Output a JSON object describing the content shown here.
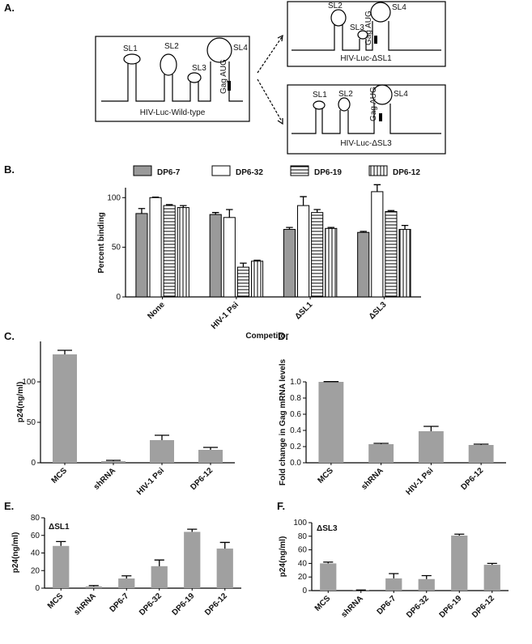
{
  "panel_a": {
    "label": "A.",
    "wild_type": {
      "stems": [
        "SL1",
        "SL2",
        "SL3",
        "SL4"
      ],
      "gag": "Gag AUG",
      "name": "HIV-Luc-Wild-type"
    },
    "delta_sl1": {
      "stems": [
        "SL2",
        "SL3",
        "SL4"
      ],
      "gag": "Gag AUG",
      "name": "HIV-Luc-ΔSL1"
    },
    "delta_sl3": {
      "stems": [
        "SL1",
        "SL2",
        "SL4"
      ],
      "gag": "Gag AUG",
      "name": "HIV-Luc-ΔSL3"
    }
  },
  "chart_data": [
    {
      "type": "bar",
      "panel": "B.",
      "y_label": "Percent binding",
      "x_label": "Competitor",
      "categories": [
        "None",
        "HIV-1 Psi",
        "ΔSL1",
        "ΔSL3"
      ],
      "edgecolor": "#000000",
      "series": [
        {
          "name": "DP6-7",
          "color": "#9a9a9a",
          "values": [
            84,
            83,
            68,
            65
          ],
          "errors": [
            5,
            2,
            2,
            1
          ]
        },
        {
          "name": "DP6-32",
          "color": "#ffffff",
          "values": [
            100,
            80,
            92,
            106
          ],
          "errors": [
            0.5,
            8,
            9,
            7
          ]
        },
        {
          "name": "DP6-19",
          "color": "#ffffff",
          "hatch": "horizontal",
          "values": [
            92,
            30,
            85,
            86
          ],
          "errors": [
            1,
            4,
            3,
            1
          ]
        },
        {
          "name": "DP6-12",
          "color": "#ffffff",
          "hatch": "vertical",
          "values": [
            90,
            36,
            69,
            68
          ],
          "errors": [
            2,
            1,
            1,
            4
          ]
        }
      ],
      "ylim": [
        0,
        110
      ],
      "yticks": [
        0,
        50,
        100
      ]
    },
    {
      "type": "bar",
      "panel": "C.",
      "y_label": "p24(ng/ml)",
      "color": "#a0a0a0",
      "categories": [
        "MCS",
        "shRNA",
        "HIV-1 Psi",
        "DP6-12"
      ],
      "values": [
        134,
        2,
        28,
        16
      ],
      "errors": [
        5,
        1,
        6,
        3
      ],
      "ylim": [
        0,
        150
      ],
      "yticks": [
        0,
        50,
        100
      ]
    },
    {
      "type": "bar",
      "panel": "D.",
      "y_label": "Fold change in Gag mRNA levels",
      "color": "#a0a0a0",
      "categories": [
        "MCS",
        "shRNA",
        "HIV-1 Psi",
        "DP6-12"
      ],
      "values": [
        1.0,
        0.23,
        0.39,
        0.22
      ],
      "errors": [
        0.003,
        0.01,
        0.06,
        0.01
      ],
      "ylim": [
        0,
        1.0
      ],
      "yticks": [
        {
          "value": 0,
          "label": "0.0"
        },
        0.2,
        0.4,
        0.6,
        0.8,
        {
          "value": 1.0,
          "label": "1.0"
        }
      ]
    },
    {
      "type": "bar",
      "panel": "E.",
      "annotation": "ΔSL1",
      "y_label": "p24(ng/ml)",
      "color": "#a0a0a0",
      "categories": [
        "MCS",
        "shRNA",
        "DP6-7",
        "DP6-32",
        "DP6-19",
        "DP6-12"
      ],
      "values": [
        48,
        2,
        11,
        25,
        64,
        45
      ],
      "errors": [
        5,
        1,
        3,
        7,
        3,
        7
      ],
      "ylim": [
        0,
        80
      ],
      "yticks": [
        0,
        20,
        40,
        60,
        80
      ]
    },
    {
      "type": "bar",
      "panel": "F.",
      "annotation": "ΔSL3",
      "y_label": "p24(ng/ml)",
      "color": "#a0a0a0",
      "categories": [
        "MCS",
        "shRNA",
        "DP6-7",
        "DP6-32",
        "DP6-19",
        "DP6-12"
      ],
      "values": [
        40,
        0.5,
        18,
        17,
        81,
        38
      ],
      "errors": [
        2,
        0.3,
        7,
        5,
        2,
        2
      ],
      "ylim": [
        0,
        100
      ],
      "yticks": [
        0,
        20,
        40,
        60,
        80,
        100
      ]
    }
  ]
}
